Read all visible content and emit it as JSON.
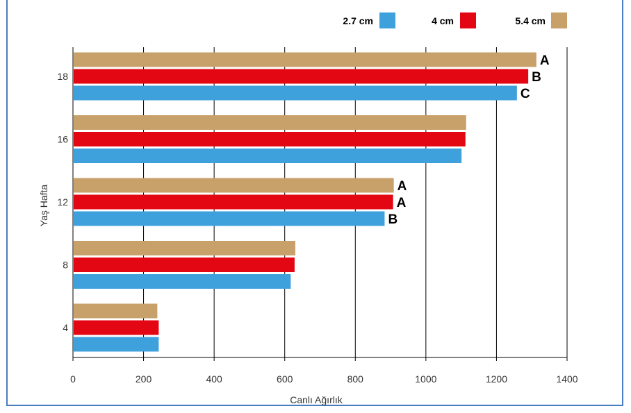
{
  "chart_data": {
    "type": "bar",
    "orientation": "horizontal",
    "xlabel": "Canlı Ağırlık",
    "ylabel": "Yaş Hafta",
    "xlim": [
      0,
      1400
    ],
    "xticks": [
      "0",
      "200",
      "400",
      "600",
      "800",
      "1000",
      "1200",
      "1400"
    ],
    "categories": [
      "4",
      "8",
      "12",
      "16",
      "18"
    ],
    "grid": "vertical",
    "legend_position": "top-right",
    "series": [
      {
        "name": "2.7 cm",
        "color": "#3fa1dc",
        "values": [
          243,
          617,
          883,
          1101,
          1258
        ],
        "labels": [
          "",
          "",
          "B",
          "",
          "C"
        ]
      },
      {
        "name": "4 cm",
        "color": "#e30613",
        "values": [
          243,
          628,
          907,
          1112,
          1290
        ],
        "labels": [
          "",
          "",
          "A",
          "",
          "B"
        ]
      },
      {
        "name": "5.4 cm",
        "color": "#c8a06a",
        "values": [
          239,
          630,
          909,
          1114,
          1313
        ],
        "labels": [
          "",
          "",
          "A",
          "",
          "A"
        ]
      }
    ]
  }
}
